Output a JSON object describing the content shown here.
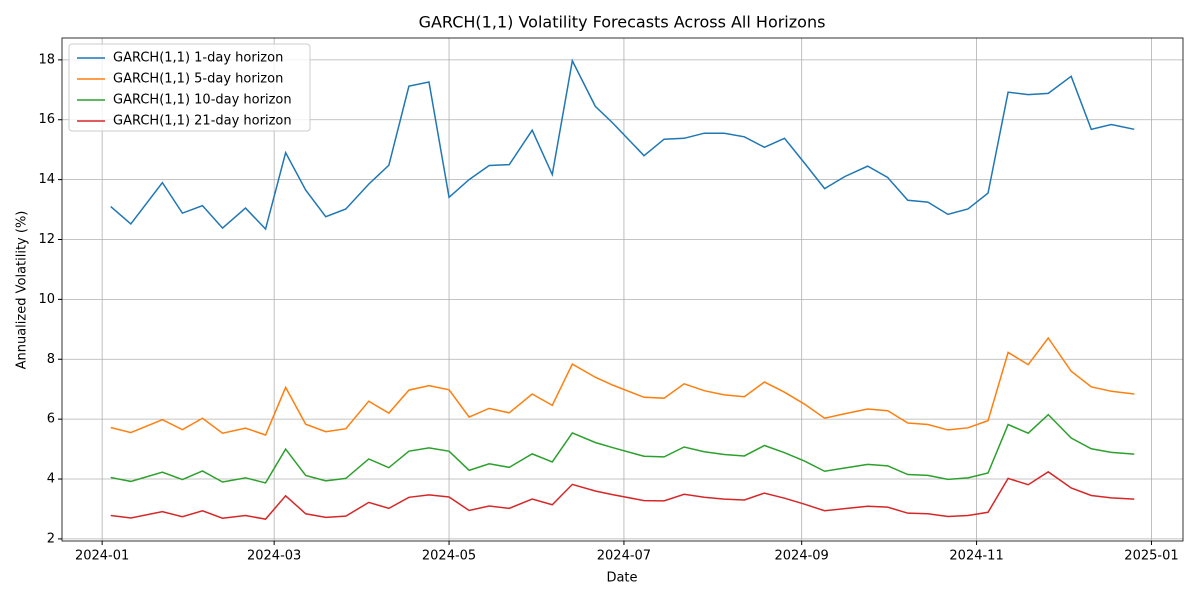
{
  "chart_data": {
    "type": "line",
    "title": "GARCH(1,1) Volatility Forecasts Across All Horizons",
    "xlabel": "Date",
    "ylabel": "Annualized Volatility (%)",
    "x": [
      "2024-01-04",
      "2024-01-11",
      "2024-01-22",
      "2024-01-29",
      "2024-02-05",
      "2024-02-12",
      "2024-02-20",
      "2024-02-27",
      "2024-03-05",
      "2024-03-12",
      "2024-03-19",
      "2024-03-26",
      "2024-04-03",
      "2024-04-10",
      "2024-04-17",
      "2024-04-24",
      "2024-05-01",
      "2024-05-08",
      "2024-05-15",
      "2024-05-22",
      "2024-05-30",
      "2024-06-06",
      "2024-06-13",
      "2024-06-21",
      "2024-06-27",
      "2024-07-08",
      "2024-07-15",
      "2024-07-22",
      "2024-07-29",
      "2024-08-05",
      "2024-08-12",
      "2024-08-19",
      "2024-08-26",
      "2024-09-02",
      "2024-09-09",
      "2024-09-16",
      "2024-09-24",
      "2024-10-01",
      "2024-10-08",
      "2024-10-15",
      "2024-10-22",
      "2024-10-29",
      "2024-11-05",
      "2024-11-12",
      "2024-11-19",
      "2024-11-26",
      "2024-12-04",
      "2024-12-11",
      "2024-12-18",
      "2024-12-26"
    ],
    "series": [
      {
        "name": "GARCH(1,1) 1-day horizon",
        "color": "#1f77b4",
        "values": [
          13.1,
          12.52,
          13.9,
          12.88,
          13.13,
          12.38,
          13.05,
          12.35,
          14.9,
          13.65,
          12.76,
          13.02,
          13.85,
          14.48,
          17.12,
          17.26,
          13.41,
          14.0,
          14.47,
          14.5,
          15.65,
          14.17,
          17.97,
          16.45,
          15.9,
          14.8,
          15.35,
          15.38,
          15.55,
          15.55,
          15.43,
          15.08,
          15.38,
          14.55,
          13.7,
          14.1,
          14.45,
          14.07,
          13.31,
          13.25,
          12.84,
          13.02,
          13.55,
          16.92,
          16.84,
          16.88,
          17.45,
          15.68,
          15.84,
          15.68
        ]
      },
      {
        "name": "GARCH(1,1) 5-day horizon",
        "color": "#ff7f0e",
        "values": [
          5.72,
          5.55,
          5.98,
          5.65,
          6.03,
          5.53,
          5.7,
          5.47,
          7.06,
          5.83,
          5.58,
          5.68,
          6.6,
          6.2,
          6.97,
          7.12,
          6.98,
          6.07,
          6.36,
          6.21,
          6.84,
          6.46,
          7.84,
          7.4,
          7.14,
          6.73,
          6.7,
          7.18,
          6.95,
          6.81,
          6.75,
          7.24,
          6.9,
          6.5,
          6.03,
          6.18,
          6.34,
          6.28,
          5.87,
          5.82,
          5.64,
          5.71,
          5.95,
          8.23,
          7.82,
          8.71,
          7.6,
          7.08,
          6.93,
          6.84
        ]
      },
      {
        "name": "GARCH(1,1) 10-day horizon",
        "color": "#2ca02c",
        "values": [
          4.05,
          3.92,
          4.23,
          3.98,
          4.27,
          3.9,
          4.04,
          3.87,
          5.0,
          4.12,
          3.94,
          4.02,
          4.67,
          4.38,
          4.93,
          5.04,
          4.93,
          4.29,
          4.51,
          4.39,
          4.84,
          4.57,
          5.54,
          5.22,
          5.05,
          4.76,
          4.74,
          5.07,
          4.91,
          4.82,
          4.77,
          5.12,
          4.88,
          4.6,
          4.26,
          4.37,
          4.49,
          4.44,
          4.15,
          4.12,
          3.99,
          4.04,
          4.2,
          5.82,
          5.53,
          6.15,
          5.37,
          5.01,
          4.89,
          4.83
        ]
      },
      {
        "name": "GARCH(1,1) 21-day horizon",
        "color": "#d62728",
        "values": [
          2.78,
          2.7,
          2.91,
          2.74,
          2.94,
          2.69,
          2.78,
          2.66,
          3.44,
          2.84,
          2.72,
          2.76,
          3.22,
          3.02,
          3.39,
          3.47,
          3.4,
          2.95,
          3.1,
          3.02,
          3.33,
          3.14,
          3.82,
          3.6,
          3.48,
          3.28,
          3.27,
          3.49,
          3.39,
          3.33,
          3.3,
          3.53,
          3.36,
          3.16,
          2.94,
          3.01,
          3.09,
          3.06,
          2.86,
          2.84,
          2.75,
          2.78,
          2.89,
          4.02,
          3.81,
          4.24,
          3.7,
          3.45,
          3.37,
          3.33
        ]
      }
    ],
    "xlim": [
      "2023-12-18",
      "2025-01-12"
    ],
    "xticks": [
      "2024-01",
      "2024-03",
      "2024-05",
      "2024-07",
      "2024-09",
      "2024-11",
      "2025-01"
    ],
    "ylim": [
      1.93,
      18.73
    ],
    "yticks": [
      2,
      4,
      6,
      8,
      10,
      12,
      14,
      16,
      18
    ],
    "grid": true,
    "legend": "upper left"
  }
}
